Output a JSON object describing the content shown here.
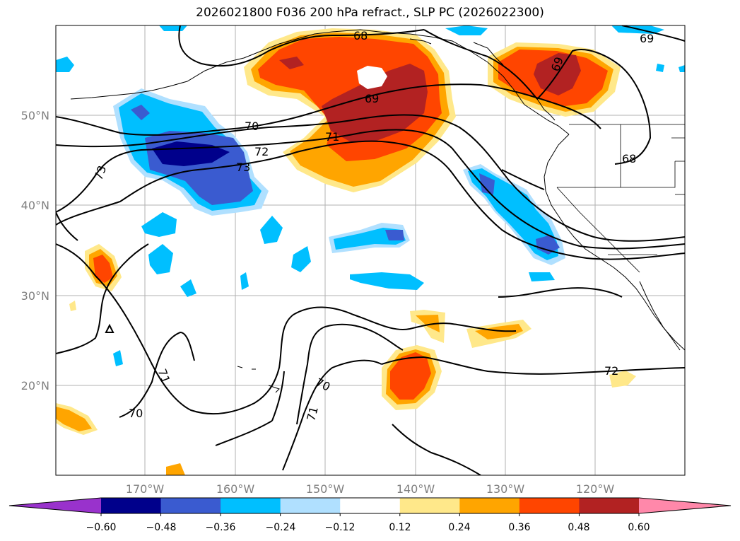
{
  "title": "2026021800 F036 200 hPa refract., SLP PC (2026022300)",
  "lat_labels": [
    "50°N",
    "40°N",
    "30°N",
    "20°N"
  ],
  "lon_labels": [
    "170°W",
    "160°W",
    "150°W",
    "140°W",
    "130°W",
    "120°W"
  ],
  "contour_labels": [
    "68",
    "69",
    "69",
    "69",
    "70",
    "71",
    "72",
    "73",
    "73",
    "68",
    "71",
    "70",
    "70",
    "71",
    "72"
  ],
  "colorbar": {
    "colors": [
      "#9932cc",
      "#00008b",
      "#3a5bd0",
      "#00bfff",
      "#b0e0ff",
      "#ffffff",
      "#ffe88a",
      "#ffa500",
      "#ff4500",
      "#b22222",
      "#ff88aa"
    ],
    "tick_labels": [
      "−0.60",
      "−0.48",
      "−0.36",
      "−0.24",
      "−0.12",
      "0.12",
      "0.24",
      "0.36",
      "0.48",
      "0.60"
    ]
  }
}
